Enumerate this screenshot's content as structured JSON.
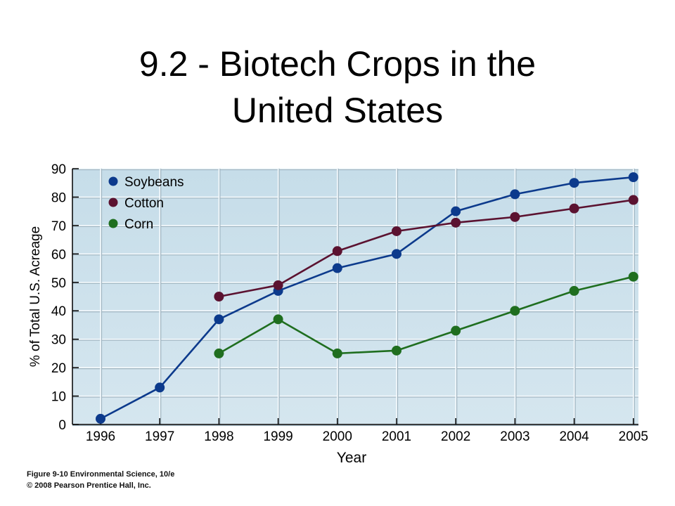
{
  "title_lines": [
    "9.2 - Biotech Crops in the",
    "United States"
  ],
  "chart_data": {
    "type": "line",
    "title": "",
    "xlabel": "Year",
    "ylabel": "% of Total U.S. Acreage",
    "x": [
      1996,
      1997,
      1998,
      1999,
      2000,
      2001,
      2002,
      2003,
      2004,
      2005
    ],
    "xticks": [
      "1996",
      "1997",
      "1998",
      "1999",
      "2000",
      "2001",
      "2002",
      "2003",
      "2004",
      "2005"
    ],
    "yticks": [
      "0",
      "10",
      "20",
      "30",
      "40",
      "50",
      "60",
      "70",
      "80",
      "90"
    ],
    "ylim": [
      0,
      90
    ],
    "grid": true,
    "legend_position": "top-left",
    "series": [
      {
        "name": "Soybeans",
        "color": "#0c3a8c",
        "values": [
          2,
          13,
          37,
          47,
          55,
          60,
          75,
          81,
          85,
          87
        ]
      },
      {
        "name": "Cotton",
        "color": "#5b1230",
        "values": [
          null,
          null,
          45,
          49,
          61,
          68,
          71,
          73,
          76,
          79
        ]
      },
      {
        "name": "Corn",
        "color": "#1f6e1f",
        "values": [
          null,
          null,
          25,
          37,
          25,
          26,
          33,
          40,
          47,
          52
        ]
      }
    ]
  },
  "credits": {
    "line1": "Figure 9-10  Environmental Science, 10/e",
    "line2": "© 2008 Pearson Prentice Hall, Inc."
  }
}
